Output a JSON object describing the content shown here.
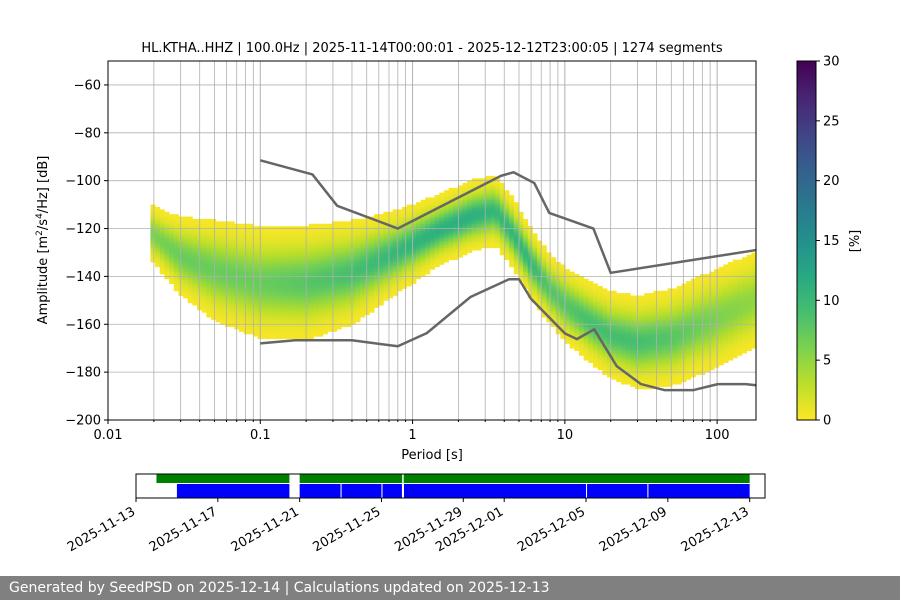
{
  "title": "HL.KTHA..HHZ | 100.0Hz | 2025-11-14T00:00:01 - 2025-12-12T23:00:05 | 1274 segments",
  "footer": "Generated by SeedPSD on 2025-12-14 | Calculations updated on 2025-12-13",
  "colors": {
    "noise_model": "#666666",
    "coverage_green": "#008000",
    "coverage_blue": "#0000ff",
    "grid": "#b0b0b0",
    "low_density": "#fde725"
  },
  "chart_data": [
    {
      "type": "heatmap",
      "title": "HL.KTHA..HHZ | 100.0Hz | 2025-11-14T00:00:01 - 2025-12-12T23:00:05 | 1274 segments",
      "xlabel": "Period [s]",
      "ylabel": "Amplitude [m²/s⁴/Hz] [dB]",
      "x_scale": "log",
      "xlim": [
        0.01,
        180
      ],
      "ylim": [
        -200,
        -50
      ],
      "x_ticks": [
        0.01,
        0.1,
        1,
        10,
        100
      ],
      "x_tick_labels": [
        "0.01",
        "0.1",
        "1",
        "10",
        "100"
      ],
      "y_ticks": [
        -200,
        -180,
        -160,
        -140,
        -120,
        -100,
        -80,
        -60
      ],
      "y_tick_labels": [
        "−200",
        "−180",
        "−160",
        "−140",
        "−120",
        "−100",
        "−80",
        "−60"
      ],
      "grid": true,
      "colormap": "viridis",
      "colorbar": {
        "label": "[%]",
        "range": [
          0,
          30
        ],
        "ticks": [
          0,
          5,
          10,
          15,
          20,
          25,
          30
        ]
      },
      "density_band": {
        "period": [
          0.019,
          0.03,
          0.05,
          0.1,
          0.2,
          0.4,
          0.8,
          1.5,
          2.5,
          3.5,
          4.5,
          6,
          8,
          10,
          15,
          20,
          30,
          50,
          100,
          180
        ],
        "mode_db": [
          -122,
          -132,
          -138,
          -143,
          -143,
          -139,
          -130,
          -121,
          -115,
          -113,
          -122,
          -135,
          -146,
          -152,
          -160,
          -165,
          -168,
          -166,
          -158,
          -150
        ],
        "width_db": [
          10,
          14,
          18,
          20,
          20,
          18,
          14,
          12,
          12,
          12,
          12,
          12,
          12,
          13,
          14,
          15,
          16,
          17,
          18,
          18
        ],
        "peak_density_pct": [
          6,
          7,
          7,
          7,
          8,
          9,
          10,
          11,
          11,
          10,
          10,
          10,
          8,
          8,
          9,
          9,
          9,
          8,
          6,
          5
        ]
      },
      "series": [
        {
          "name": "",
          "x": [
            0.1,
            0.22,
            0.32,
            0.8,
            3.8,
            4.6,
            6.3,
            7.9,
            15.4,
            20,
            180
          ],
          "y": [
            -91.5,
            -97.4,
            -110.5,
            -120,
            -98,
            -96.5,
            -101,
            -113.5,
            -120,
            -138.5,
            -129
          ]
        },
        {
          "name": "",
          "x": [
            0.1,
            0.17,
            0.4,
            0.8,
            1.24,
            2.4,
            4.3,
            5.0,
            6.0,
            10.0,
            12.0,
            15.6,
            21.9,
            31.6,
            45.0,
            70.0,
            101.0,
            154.0,
            180.0
          ],
          "y": [
            -168.0,
            -166.7,
            -166.7,
            -169.2,
            -163.7,
            -148.6,
            -141.2,
            -141.2,
            -149.4,
            -163.8,
            -166.2,
            -162.1,
            -177.5,
            -185.0,
            -187.5,
            -187.5,
            -185.0,
            -185.0,
            -185.5
          ]
        }
      ]
    },
    {
      "type": "bar",
      "xlabel": "",
      "ylabel": "",
      "x_tick_labels": [
        "2025-11-13",
        "2025-11-17",
        "2025-11-21",
        "2025-11-25",
        "2025-11-29",
        "2025-12-01",
        "2025-12-05",
        "2025-12-09",
        "2025-12-13"
      ],
      "x_tick_dates": [
        "2025-11-13",
        "2025-11-17",
        "2025-11-21",
        "2025-11-25",
        "2025-11-29",
        "2025-12-01",
        "2025-12-05",
        "2025-12-09",
        "2025-12-13"
      ],
      "xlim": [
        "2025-11-13",
        "2025-12-13.75"
      ],
      "coverage_top": [
        {
          "start": "2025-11-14",
          "end": "2025-11-20.5"
        },
        {
          "start": "2025-11-21",
          "end": "2025-12-13"
        }
      ],
      "coverage_bottom": [
        {
          "start": "2025-11-15",
          "end": "2025-11-20.5"
        },
        {
          "start": "2025-11-21",
          "end": "2025-11-23"
        },
        {
          "start": "2025-11-23.05",
          "end": "2025-11-25"
        },
        {
          "start": "2025-11-25.05",
          "end": "2025-11-26"
        },
        {
          "start": "2025-11-26.1",
          "end": "2025-12-05"
        },
        {
          "start": "2025-12-05.05",
          "end": "2025-12-08"
        },
        {
          "start": "2025-12-08.05",
          "end": "2025-12-13"
        }
      ],
      "gaps": [
        "2025-11-26.05"
      ]
    }
  ]
}
